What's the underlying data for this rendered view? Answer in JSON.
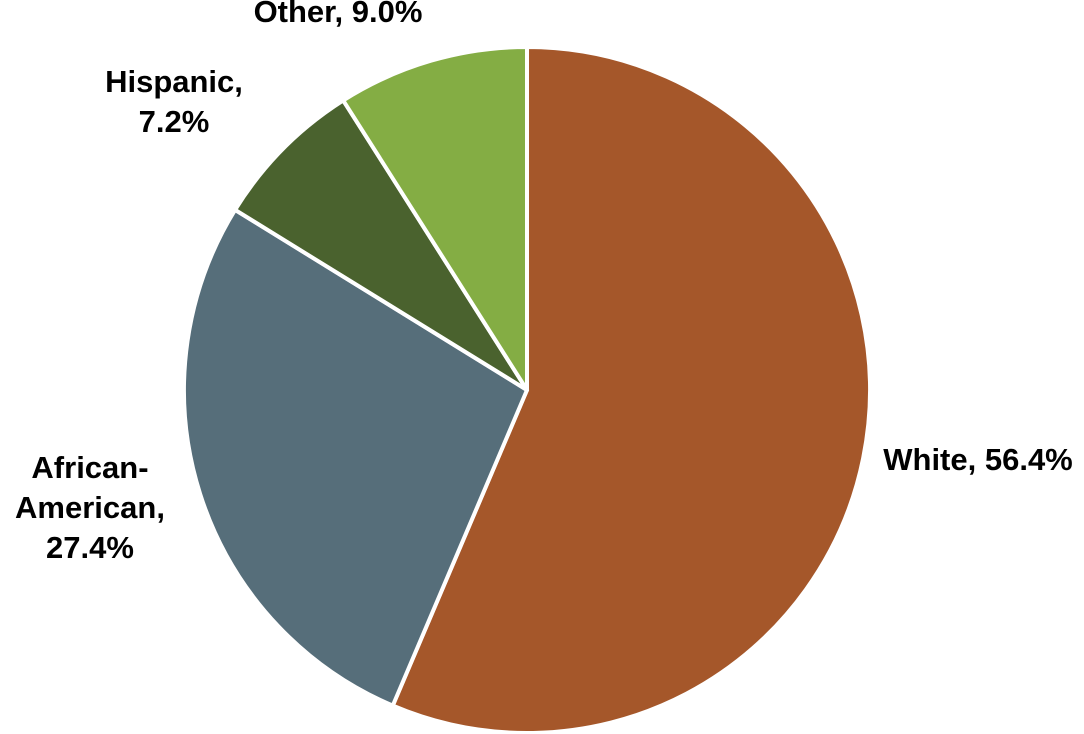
{
  "chart_data": {
    "type": "pie",
    "title": "",
    "start_angle_deg": 0,
    "direction": "clockwise",
    "slices": [
      {
        "label": "White",
        "value": 56.4,
        "display": "White, 56.4%",
        "label_lines": [
          "White, 56.4%"
        ],
        "color": "#A5572A"
      },
      {
        "label": "African-American",
        "value": 27.4,
        "display": "African-American, 27.4%",
        "label_lines": [
          "African-",
          "American,",
          "27.4%"
        ],
        "color": "#566E7A"
      },
      {
        "label": "Hispanic",
        "value": 7.2,
        "display": "Hispanic, 7.2%",
        "label_lines": [
          "Hispanic,",
          "7.2%"
        ],
        "color": "#4A622E"
      },
      {
        "label": "Other",
        "value": 9.0,
        "display": "Other, 9.0%",
        "label_lines": [
          "Other, 9.0%"
        ],
        "color": "#84AD44"
      }
    ],
    "slice_border_color": "#FFFFFF",
    "legend": "none"
  }
}
